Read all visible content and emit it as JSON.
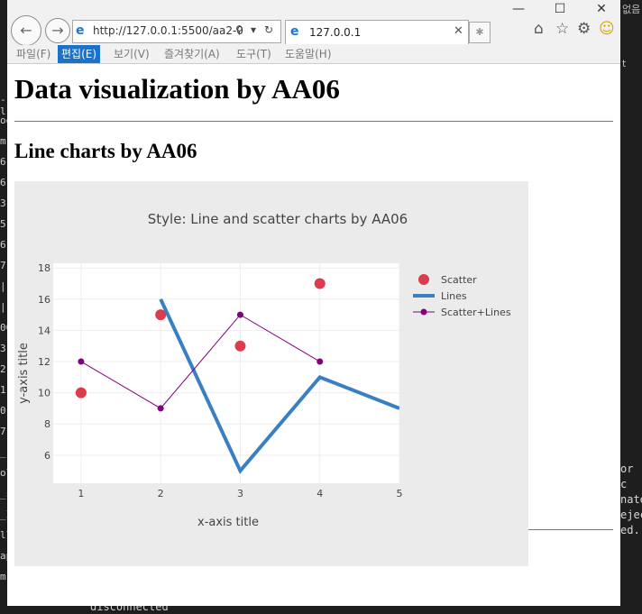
{
  "background": {
    "right_title": "없음",
    "right_t": "t",
    "right_lines": [
      "or c",
      "nate",
      "ejec",
      "ed."
    ],
    "left_chars": [
      "-l",
      "oo",
      "m",
      "6",
      "6",
      "3",
      "5",
      "6",
      "7",
      "|",
      "|",
      "00",
      "3",
      "2",
      "1",
      "0",
      "7",
      "_",
      "ol_",
      "_s",
      "_I",
      "ll",
      "ap",
      "m"
    ],
    "bottom_text": "disconnected"
  },
  "browser": {
    "url": "http://127.0.0.1:5500/aa2-0",
    "tab_title": "127.0.0.1",
    "menu": [
      "파일(F)",
      "편집(E)",
      "보기(V)",
      "즐겨찾기(A)",
      "도구(T)",
      "도움말(H)"
    ],
    "active_menu_index": 1
  },
  "page": {
    "h1": "Data visualization by AA06",
    "h2": "Line charts by AA06"
  },
  "chart_data": {
    "type": "line",
    "title": "Style: Line and scatter charts by AA06",
    "xlabel": "x-axis title",
    "ylabel": "y-axis title",
    "xlim": [
      0.65,
      5
    ],
    "ylim": [
      4.2,
      18.3
    ],
    "xticks": [
      1,
      2,
      3,
      4,
      5
    ],
    "yticks": [
      6,
      8,
      10,
      12,
      14,
      16,
      18
    ],
    "grid": true,
    "legend_position": "right",
    "series": [
      {
        "name": "Scatter",
        "mode": "markers",
        "color": "#dc3c4c",
        "x": [
          1,
          2,
          3,
          4
        ],
        "y": [
          10,
          15,
          13,
          17
        ]
      },
      {
        "name": "Lines",
        "mode": "lines",
        "color": "#3a7fc1",
        "x": [
          2,
          3,
          4,
          5
        ],
        "y": [
          16,
          5,
          11,
          9
        ]
      },
      {
        "name": "Scatter+Lines",
        "mode": "lines+markers",
        "color": "#800080",
        "x": [
          1,
          2,
          3,
          4
        ],
        "y": [
          12,
          9,
          15,
          12
        ]
      }
    ]
  }
}
